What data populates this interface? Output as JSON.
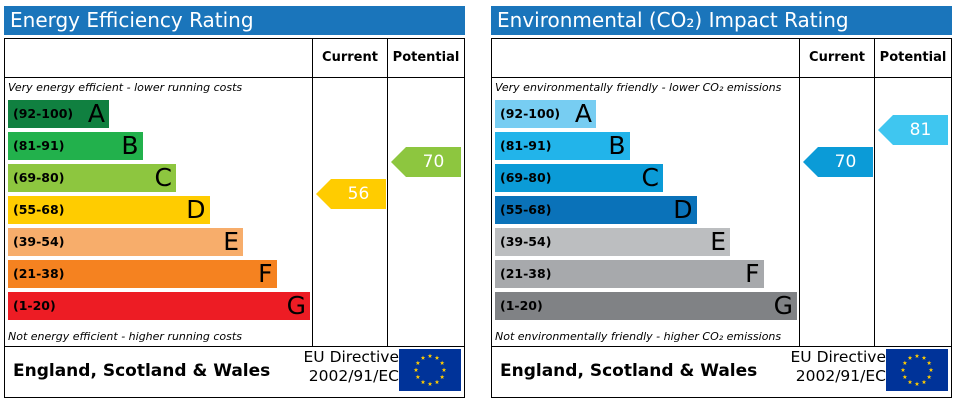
{
  "chart_data": [
    {
      "type": "bar",
      "title": "Energy Efficiency Rating",
      "columns": [
        "Current",
        "Potential"
      ],
      "top_note": "Very energy efficient - lower running costs",
      "bottom_note": "Not energy efficient - higher running costs",
      "bands": [
        {
          "range": "(92-100)",
          "letter": "A",
          "min": 92,
          "color": "#108040"
        },
        {
          "range": "(81-91)",
          "letter": "B",
          "min": 81,
          "color": "#22b14c"
        },
        {
          "range": "(69-80)",
          "letter": "C",
          "min": 69,
          "color": "#8dc63f"
        },
        {
          "range": "(55-68)",
          "letter": "D",
          "min": 55,
          "color": "#ffcc00"
        },
        {
          "range": "(39-54)",
          "letter": "E",
          "min": 39,
          "color": "#f7ad6b"
        },
        {
          "range": "(21-38)",
          "letter": "F",
          "min": 21,
          "color": "#f58220"
        },
        {
          "range": "(1-20)",
          "letter": "G",
          "min": 1,
          "color": "#ed1c24"
        }
      ],
      "current": {
        "value": "56",
        "color": "#ffcc00"
      },
      "potential": {
        "value": "70",
        "color": "#8dc63f"
      },
      "footer": {
        "region": "England, Scotland & Wales",
        "directive_line1": "EU Directive",
        "directive_line2": "2002/91/EC"
      }
    },
    {
      "type": "bar",
      "title": "Environmental (CO₂) Impact Rating",
      "columns": [
        "Current",
        "Potential"
      ],
      "top_note": "Very environmentally friendly - lower CO₂ emissions",
      "bottom_note": "Not environmentally friendly - higher CO₂ emissions",
      "bands": [
        {
          "range": "(92-100)",
          "letter": "A",
          "min": 92,
          "color": "#77cdf2"
        },
        {
          "range": "(81-91)",
          "letter": "B",
          "min": 81,
          "color": "#22b4ea"
        },
        {
          "range": "(69-80)",
          "letter": "C",
          "min": 69,
          "color": "#0b9bd7"
        },
        {
          "range": "(55-68)",
          "letter": "D",
          "min": 55,
          "color": "#0a72b9"
        },
        {
          "range": "(39-54)",
          "letter": "E",
          "min": 39,
          "color": "#bcbec0"
        },
        {
          "range": "(21-38)",
          "letter": "F",
          "min": 21,
          "color": "#a7a9ac"
        },
        {
          "range": "(1-20)",
          "letter": "G",
          "min": 1,
          "color": "#808285"
        }
      ],
      "current": {
        "value": "70",
        "color": "#0b9bd7"
      },
      "potential": {
        "value": "81",
        "color": "#3fc6f0"
      },
      "footer": {
        "region": "England, Scotland & Wales",
        "directive_line1": "EU Directive",
        "directive_line2": "2002/91/EC"
      }
    }
  ],
  "colors": {
    "title_bar": "#1a75bb",
    "eu_flag_blue": "#003399",
    "eu_flag_stars": "#ffcc00"
  }
}
